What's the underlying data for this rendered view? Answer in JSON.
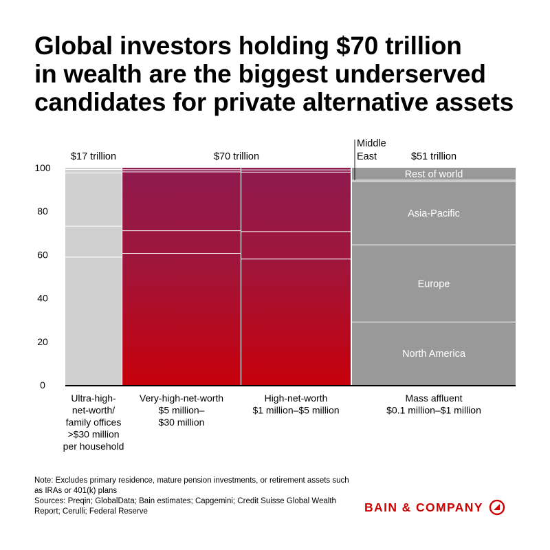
{
  "title": {
    "line1": "Global investors holding $70 trillion",
    "line2": "in wealth are the biggest underserved",
    "line3": "candidates for private alternative assets"
  },
  "chart_data": {
    "type": "marimekko",
    "ylim": [
      0,
      100
    ],
    "yticks": [
      "0",
      "20",
      "40",
      "60",
      "80",
      "100"
    ],
    "segments_order": [
      "North America",
      "Europe",
      "Asia-Pacific",
      "Middle East",
      "Rest of world"
    ],
    "columns": [
      {
        "name": "ultra",
        "label": [
          "Ultra-high-",
          "net-worth/",
          "family offices",
          ">$30 million",
          "per household"
        ],
        "color": "#cfcfcf",
        "values": [
          58.9,
          14.2,
          24.5,
          1.6,
          0.8
        ]
      },
      {
        "name": "very-high",
        "label": [
          "Very-high-net-worth",
          "$5 million–",
          "$30 million"
        ],
        "color": "gradient",
        "values": [
          60.6,
          10.4,
          27.1,
          1.0,
          0.9
        ]
      },
      {
        "name": "high",
        "label": [
          "High-net-worth",
          "$1 million–$5 million"
        ],
        "color": "gradient",
        "values": [
          58.0,
          12.6,
          27.4,
          1.0,
          1.0
        ]
      },
      {
        "name": "mass-affluent",
        "label": [
          "Mass affluent",
          "$0.1 million–$1 million"
        ],
        "color": "#999999",
        "values": [
          29.0,
          35.5,
          29.1,
          0.7,
          5.7
        ]
      }
    ],
    "totals": [
      {
        "label": "$17 trillion",
        "columns": [
          "ultra"
        ]
      },
      {
        "label": "$70 trillion",
        "columns": [
          "very-high",
          "high"
        ]
      },
      {
        "label": "$51 trillion",
        "columns": [
          "mass-affluent"
        ]
      }
    ],
    "annotations": {
      "middle_east": [
        "Middle",
        "East"
      ]
    },
    "segment_labels": {
      "column": "mass-affluent",
      "labels": [
        "North America",
        "Europe",
        "Asia-Pacific",
        "",
        "Rest of world"
      ]
    },
    "colors": {
      "grad_top": "#8e1a4f",
      "grad_bottom": "#c7000b",
      "separator": "#ffffff"
    }
  },
  "notes": {
    "note": "Note: Excludes primary residence, mature pension investments, or retirement assets such as IRAs or 401(k) plans",
    "sources": "Sources: Preqin; GlobalData; Bain estimates; Capgemini; Credit Suisse Global Wealth Report; Cerulli; Federal Reserve"
  },
  "brand": {
    "name": "BAIN & COMPANY",
    "color": "#cc0000"
  }
}
